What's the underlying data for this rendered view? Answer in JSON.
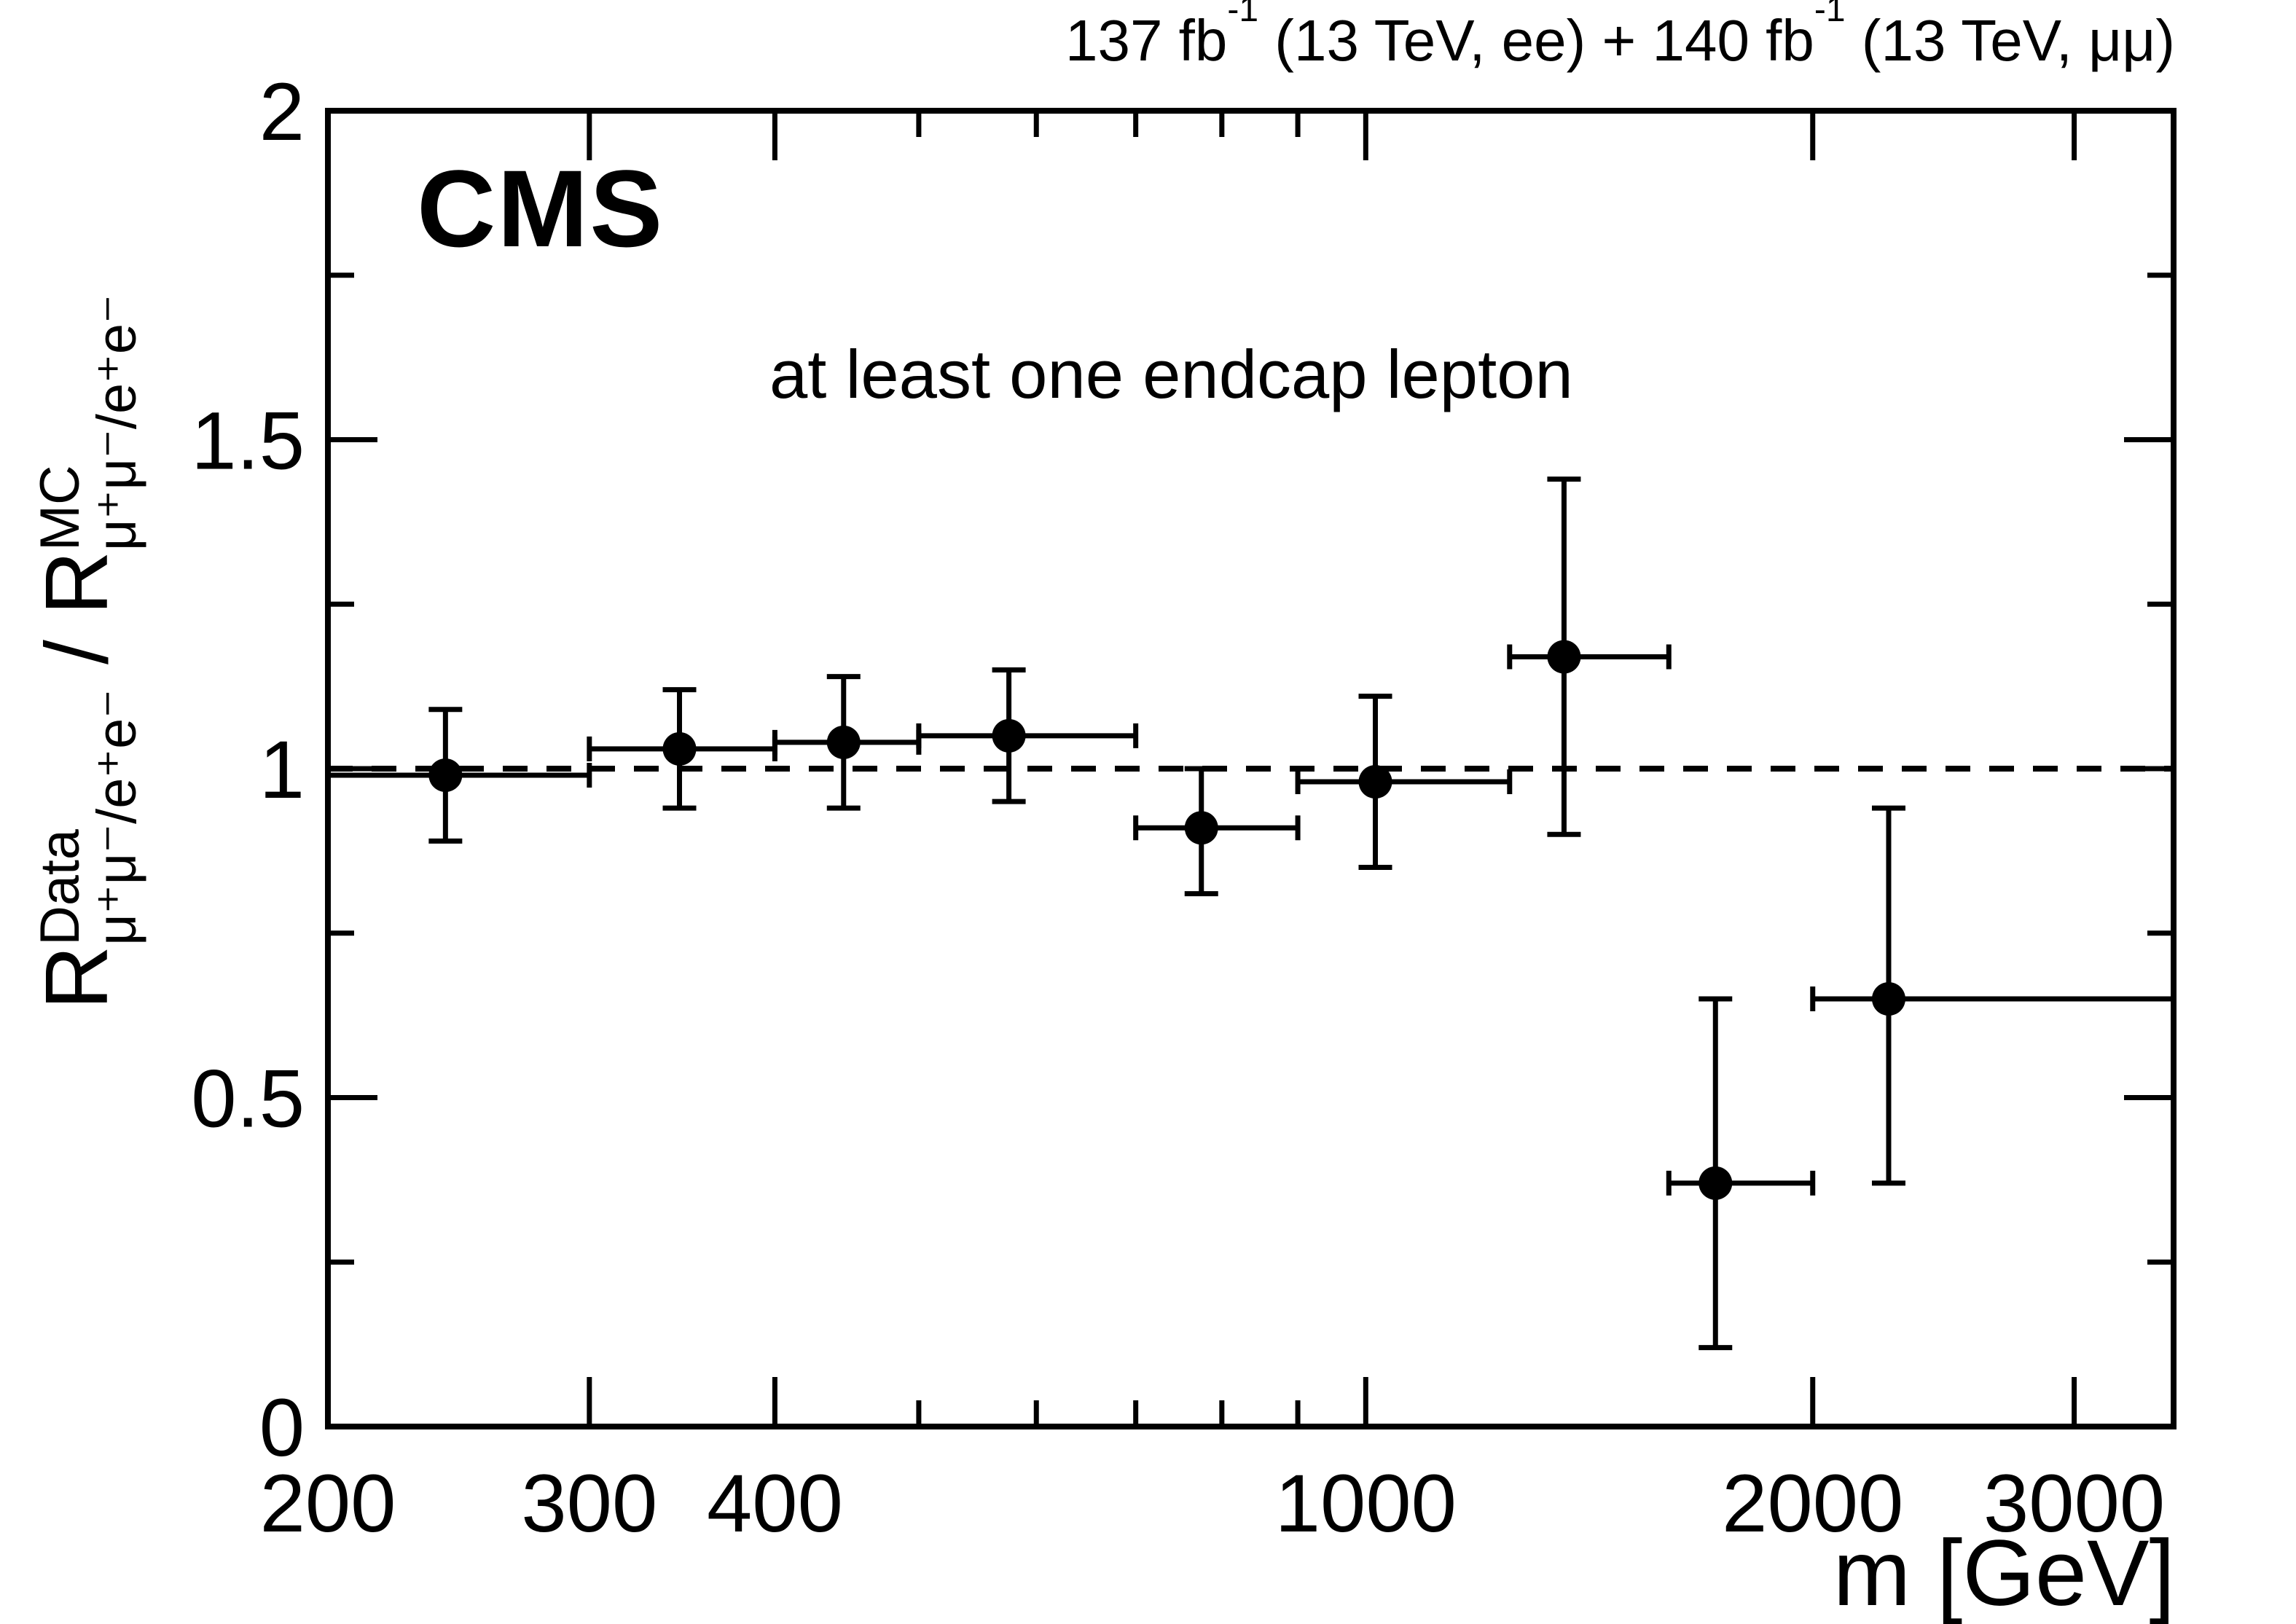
{
  "chart_data": {
    "type": "scatter",
    "header": {
      "part1": "137 fb",
      "sup1": "-1",
      "part2": " (13 TeV, ee) + 140 fb",
      "sup2": "-1",
      "part3": " (13 TeV, μμ)"
    },
    "cms_label": "CMS",
    "annotation": "at least one endcap lepton",
    "x_title": "m [GeV]",
    "y_title": {
      "r1": "R",
      "sup1": "Data",
      "sub1": "μ⁺μ⁻/e⁺e⁻",
      "mid": " / ",
      "r2": "R",
      "sup2": "MC",
      "sub2": "μ⁺μ⁻/e⁺e⁻"
    },
    "xscale": "log",
    "yscale": "linear",
    "xlim": [
      200,
      3500
    ],
    "ylim": [
      0,
      2
    ],
    "grid": false,
    "legend": "none",
    "marker": "filled-circle",
    "reference_line_y": 1,
    "reference_line_style": "dashed",
    "colors": {
      "ink": "#000000",
      "background": "#ffffff"
    },
    "x_ticks": [
      {
        "value": 200,
        "label": "200"
      },
      {
        "value": 300,
        "label": "300"
      },
      {
        "value": 400,
        "label": "400"
      },
      {
        "value": 1000,
        "label": "1000"
      },
      {
        "value": 2000,
        "label": "2000"
      },
      {
        "value": 3000,
        "label": "3000"
      }
    ],
    "x_minor_ticks": [
      500,
      600,
      700,
      800,
      900
    ],
    "y_ticks": [
      {
        "value": 0,
        "label": "0"
      },
      {
        "value": 0.5,
        "label": "0.5"
      },
      {
        "value": 1,
        "label": "1"
      },
      {
        "value": 1.5,
        "label": "1.5"
      },
      {
        "value": 2,
        "label": "2"
      }
    ],
    "y_minor_ticks": [
      0.25,
      0.75,
      1.25,
      1.75
    ],
    "points": [
      {
        "m": 240,
        "m_low": 200,
        "m_high": 300,
        "ratio": 0.99,
        "err_up": 0.1,
        "err_down": 0.1
      },
      {
        "m": 345,
        "m_low": 300,
        "m_high": 400,
        "ratio": 1.03,
        "err_up": 0.09,
        "err_down": 0.09
      },
      {
        "m": 445,
        "m_low": 400,
        "m_high": 500,
        "ratio": 1.04,
        "err_up": 0.1,
        "err_down": 0.1
      },
      {
        "m": 575,
        "m_low": 500,
        "m_high": 700,
        "ratio": 1.05,
        "err_up": 0.1,
        "err_down": 0.1
      },
      {
        "m": 775,
        "m_low": 700,
        "m_high": 900,
        "ratio": 0.91,
        "err_up": 0.09,
        "err_down": 0.1
      },
      {
        "m": 1015,
        "m_low": 900,
        "m_high": 1250,
        "ratio": 0.98,
        "err_up": 0.13,
        "err_down": 0.13
      },
      {
        "m": 1360,
        "m_low": 1250,
        "m_high": 1600,
        "ratio": 1.17,
        "err_up": 0.27,
        "err_down": 0.27
      },
      {
        "m": 1720,
        "m_low": 1600,
        "m_high": 2000,
        "ratio": 0.37,
        "err_up": 0.28,
        "err_down": 0.25
      },
      {
        "m": 2250,
        "m_low": 2000,
        "m_high": 3500,
        "ratio": 0.65,
        "err_up": 0.29,
        "err_down": 0.28
      }
    ]
  }
}
